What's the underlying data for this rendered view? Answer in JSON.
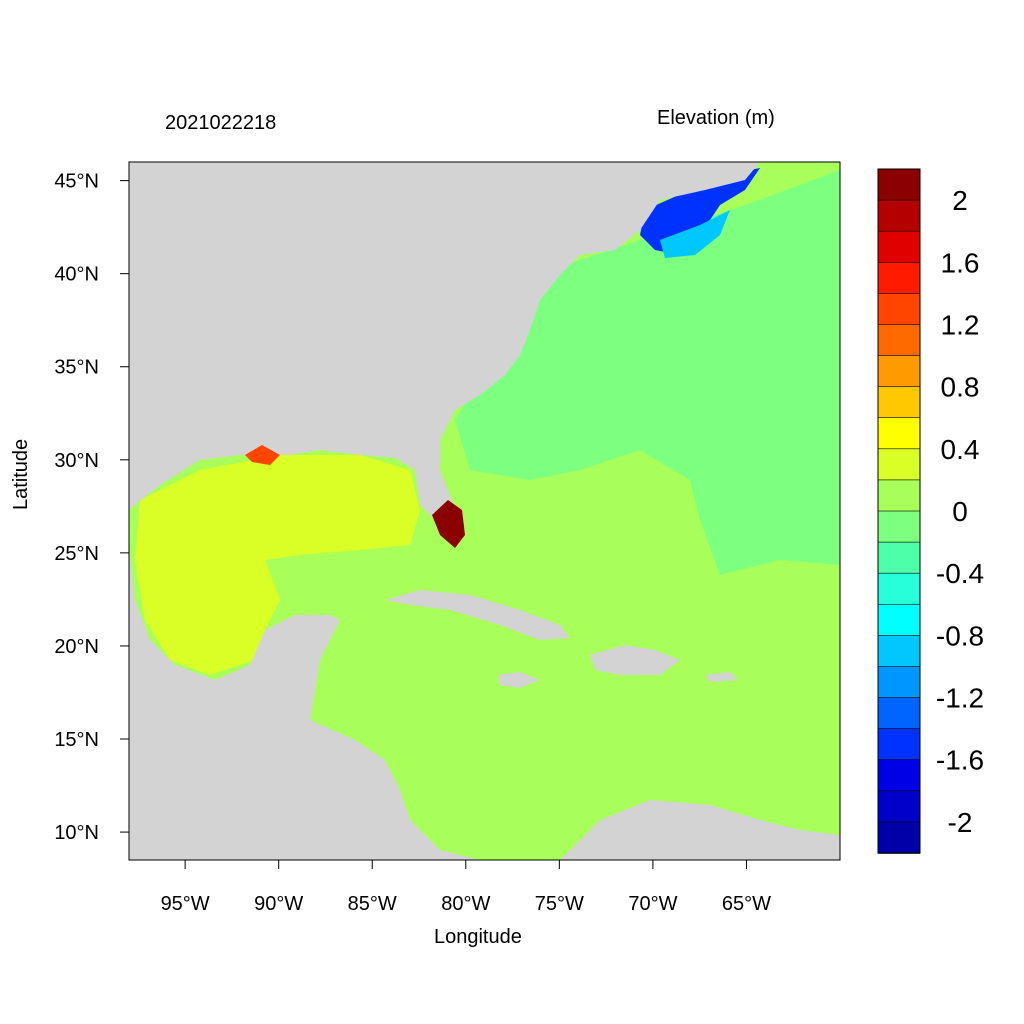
{
  "header": {
    "datetime": "2021022218",
    "variable": "Elevation (m)"
  },
  "axes": {
    "xlabel": "Longitude",
    "ylabel": "Latitude",
    "xticks": [
      "95°W",
      "90°W",
      "85°W",
      "80°W",
      "75°W",
      "70°W",
      "65°W"
    ],
    "yticks": [
      "45°N",
      "40°N",
      "35°N",
      "30°N",
      "25°N",
      "20°N",
      "15°N",
      "10°N"
    ],
    "lon_range": [
      -98,
      -60
    ],
    "lat_range": [
      8.5,
      46
    ]
  },
  "colorbar": {
    "labels": [
      "2",
      "1.6",
      "1.2",
      "0.8",
      "0.4",
      "0",
      "-0.4",
      "-0.8",
      "-1.2",
      "-1.6",
      "-2"
    ],
    "colors_top_to_bottom": [
      "#8b0000",
      "#b50000",
      "#e00000",
      "#ff1a00",
      "#ff4500",
      "#ff6a00",
      "#ff9a00",
      "#ffc800",
      "#ffff00",
      "#d9ff26",
      "#a8ff59",
      "#7dff80",
      "#4dffa8",
      "#26ffd9",
      "#00ffff",
      "#00c8ff",
      "#0096ff",
      "#0064ff",
      "#0032ff",
      "#0000e6",
      "#0000c8",
      "#0000a8"
    ]
  },
  "map": {
    "land_color": "#d3d3d3",
    "ocean_base_color": "#a8ff59",
    "gulf_color": "#d9ff26",
    "atlantic_color": "#7dff80",
    "surge_high_color": "#8b0000",
    "gulf_of_maine_color": "#0032ff"
  }
}
